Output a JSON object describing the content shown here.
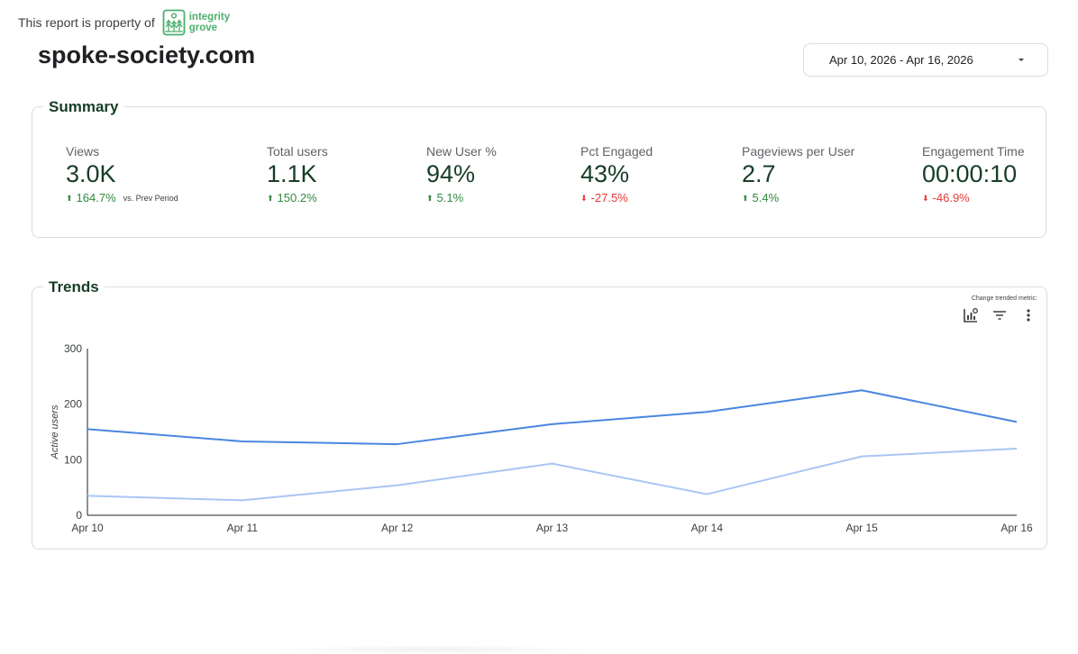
{
  "header": {
    "property_text": "This report is property of",
    "brand_line1": "integrity",
    "brand_line2": "grove",
    "site_title": "spoke-society.com"
  },
  "date_picker": {
    "range": "Apr 10, 2026 - Apr 16, 2026"
  },
  "summary": {
    "title": "Summary",
    "comparison_label": "vs. Prev Period",
    "metrics": [
      {
        "label": "Views",
        "value": "3.0K",
        "change": "164.7%",
        "direction": "up"
      },
      {
        "label": "Total users",
        "value": "1.1K",
        "change": "150.2%",
        "direction": "up"
      },
      {
        "label": "New User %",
        "value": "94%",
        "change": "5.1%",
        "direction": "up"
      },
      {
        "label": "Pct Engaged",
        "value": "43%",
        "change": "-27.5%",
        "direction": "down"
      },
      {
        "label": "Pageviews per User",
        "value": "2.7",
        "change": "5.4%",
        "direction": "up"
      },
      {
        "label": "Engagement Time",
        "value": "00:00:10",
        "change": "-46.9%",
        "direction": "down"
      }
    ]
  },
  "trends": {
    "title": "Trends",
    "change_metric_label": "Change trended metric:",
    "icons": [
      "chart-settings-icon",
      "filter-icon",
      "more-vert-icon"
    ]
  },
  "colors": {
    "primary_line": "#4a86e0",
    "secondary_line": "#a9c6f2",
    "up": "#2e8b3e",
    "down": "#e53935"
  },
  "chart_data": {
    "type": "line",
    "ylabel": "Active users",
    "ylim": [
      0,
      300
    ],
    "yticks": [
      0,
      100,
      200,
      300
    ],
    "categories": [
      "Apr 10",
      "Apr 11",
      "Apr 12",
      "Apr 13",
      "Apr 14",
      "Apr 15",
      "Apr 16"
    ],
    "series": [
      {
        "values": [
          155,
          133,
          128,
          164,
          186,
          225,
          168
        ],
        "color": "#4a86e0"
      },
      {
        "values": [
          35,
          27,
          54,
          93,
          38,
          106,
          120
        ],
        "color": "#a9c6f2"
      }
    ],
    "grid": false,
    "legend": "none"
  }
}
